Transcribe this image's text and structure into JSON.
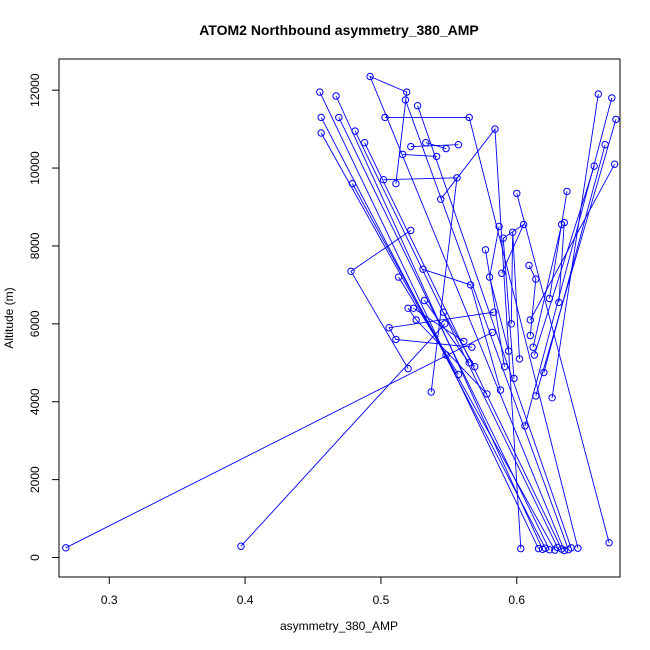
{
  "chart_data": {
    "type": "line",
    "title": "ATOM2 Northbound asymmetry_380_AMP",
    "xlabel": "asymmetry_380_AMP",
    "ylabel": "Altitude (m)",
    "xlim": [
      0.263,
      0.676
    ],
    "ylim": [
      -500,
      12800
    ],
    "xticks": [
      0.3,
      0.4,
      0.5,
      0.6
    ],
    "yticks": [
      0,
      2000,
      4000,
      6000,
      8000,
      10000,
      12000
    ],
    "grid": false,
    "marker": "open-circle",
    "color": "#0000ff",
    "segments": [
      [
        [
          0.268,
          250
        ],
        [
          0.582,
          5780
        ]
      ],
      [
        [
          0.397,
          290
        ],
        [
          0.547,
          6000
        ]
      ],
      [
        [
          0.616,
          230
        ],
        [
          0.455,
          11950
        ]
      ],
      [
        [
          0.619,
          210
        ],
        [
          0.467,
          11850
        ]
      ],
      [
        [
          0.621,
          240
        ],
        [
          0.456,
          11300
        ]
      ],
      [
        [
          0.624,
          200
        ],
        [
          0.469,
          11300
        ]
      ],
      [
        [
          0.628,
          190
        ],
        [
          0.456,
          10900
        ]
      ],
      [
        [
          0.63,
          260
        ],
        [
          0.481,
          10950
        ]
      ],
      [
        [
          0.633,
          220
        ],
        [
          0.488,
          10650
        ]
      ],
      [
        [
          0.635,
          180
        ],
        [
          0.492,
          12350
        ],
        [
          0.519,
          11950
        ],
        [
          0.511,
          9600
        ]
      ],
      [
        [
          0.638,
          200
        ],
        [
          0.518,
          11750
        ]
      ],
      [
        [
          0.64,
          250
        ],
        [
          0.527,
          11600
        ]
      ],
      [
        [
          0.645,
          240
        ],
        [
          0.565,
          11300
        ],
        [
          0.503,
          11300
        ]
      ],
      [
        [
          0.603,
          230
        ],
        [
          0.584,
          11000
        ],
        [
          0.544,
          9200
        ]
      ],
      [
        [
          0.668,
          380
        ],
        [
          0.6,
          9350
        ]
      ],
      [
        [
          0.626,
          4100
        ],
        [
          0.66,
          11900
        ]
      ],
      [
        [
          0.606,
          3380
        ],
        [
          0.67,
          11800
        ]
      ],
      [
        [
          0.614,
          4150
        ],
        [
          0.673,
          11250
        ]
      ],
      [
        [
          0.62,
          4750
        ],
        [
          0.665,
          10600
        ]
      ],
      [
        [
          0.613,
          5200
        ],
        [
          0.657,
          10050
        ]
      ],
      [
        [
          0.61,
          6100
        ],
        [
          0.672,
          10100
        ]
      ],
      [
        [
          0.624,
          6650
        ],
        [
          0.637,
          9400
        ]
      ],
      [
        [
          0.631,
          6550
        ],
        [
          0.635,
          8600
        ]
      ],
      [
        [
          0.522,
          10550
        ],
        [
          0.557,
          10600
        ]
      ],
      [
        [
          0.533,
          10650
        ],
        [
          0.548,
          10500
        ]
      ],
      [
        [
          0.516,
          10350
        ],
        [
          0.541,
          10300
        ]
      ],
      [
        [
          0.537,
          4250
        ],
        [
          0.556,
          9750
        ],
        [
          0.502,
          9700
        ]
      ],
      [
        [
          0.548,
          5200
        ],
        [
          0.479,
          9600
        ]
      ],
      [
        [
          0.557,
          4700
        ],
        [
          0.513,
          7200
        ]
      ],
      [
        [
          0.561,
          5550
        ],
        [
          0.524,
          6400
        ]
      ],
      [
        [
          0.565,
          5000
        ],
        [
          0.532,
          6600
        ]
      ],
      [
        [
          0.569,
          4900
        ],
        [
          0.546,
          6300
        ]
      ],
      [
        [
          0.52,
          4850
        ],
        [
          0.478,
          7350
        ],
        [
          0.522,
          8400
        ]
      ],
      [
        [
          0.588,
          4300
        ],
        [
          0.566,
          7000
        ],
        [
          0.531,
          7400
        ]
      ],
      [
        [
          0.591,
          4900
        ],
        [
          0.577,
          7900
        ]
      ],
      [
        [
          0.594,
          5300
        ],
        [
          0.58,
          7200
        ],
        [
          0.587,
          8500
        ]
      ],
      [
        [
          0.598,
          4600
        ],
        [
          0.59,
          8200
        ],
        [
          0.605,
          8550
        ],
        [
          0.589,
          7300
        ]
      ],
      [
        [
          0.602,
          5100
        ],
        [
          0.597,
          8350
        ],
        [
          0.596,
          6000
        ]
      ],
      [
        [
          0.567,
          5400
        ],
        [
          0.511,
          5600
        ],
        [
          0.506,
          5900
        ],
        [
          0.583,
          6300
        ]
      ],
      [
        [
          0.578,
          4200
        ],
        [
          0.526,
          6100
        ],
        [
          0.52,
          6400
        ]
      ],
      [
        [
          0.61,
          5700
        ],
        [
          0.614,
          7150
        ],
        [
          0.609,
          7500
        ]
      ],
      [
        [
          0.612,
          5400
        ],
        [
          0.633,
          8550
        ]
      ]
    ]
  }
}
